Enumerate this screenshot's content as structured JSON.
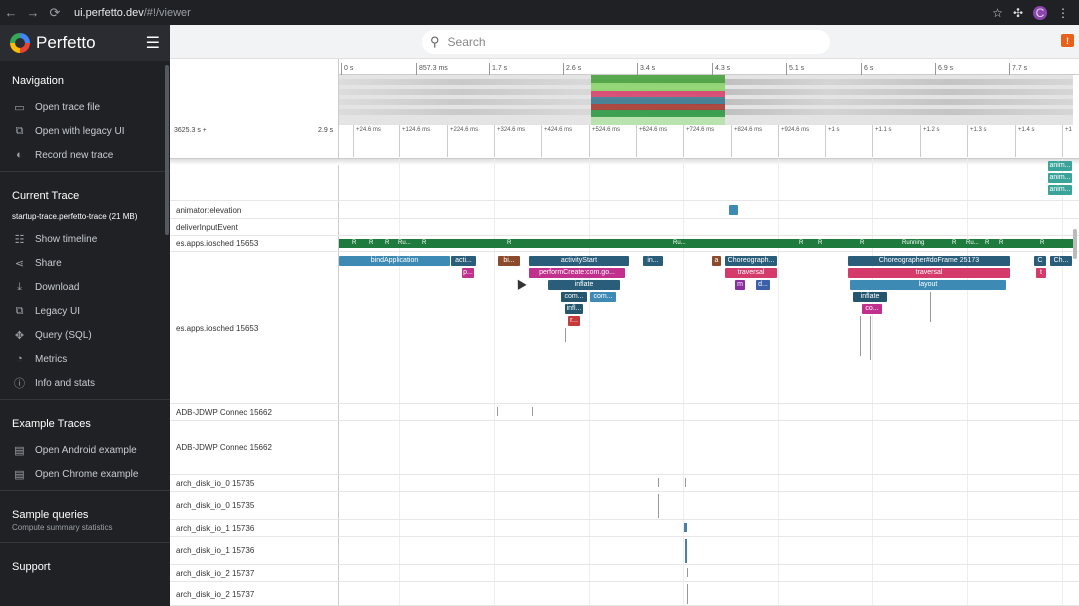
{
  "browser": {
    "url_host": "ui.perfetto.dev",
    "url_path": "/#!/viewer",
    "profile_initial": "C"
  },
  "app": {
    "name": "Perfetto"
  },
  "search": {
    "placeholder": "Search"
  },
  "sidebar": {
    "navigation_title": "Navigation",
    "navigation": [
      {
        "label": "Open trace file",
        "icon": "folder-icon"
      },
      {
        "label": "Open with legacy UI",
        "icon": "legacy-ui-icon"
      },
      {
        "label": "Record new trace",
        "icon": "record-toggle-icon"
      }
    ],
    "current_trace_title": "Current Trace",
    "trace_name": "startup-trace.perfetto-trace (21 MB)",
    "current_trace": [
      {
        "label": "Show timeline",
        "icon": "timeline-icon"
      },
      {
        "label": "Share",
        "icon": "share-icon"
      },
      {
        "label": "Download",
        "icon": "download-icon"
      },
      {
        "label": "Legacy UI",
        "icon": "legacy-ui-icon"
      },
      {
        "label": "Query (SQL)",
        "icon": "query-icon"
      },
      {
        "label": "Metrics",
        "icon": "metrics-icon"
      },
      {
        "label": "Info and stats",
        "icon": "info-icon"
      }
    ],
    "example_traces_title": "Example Traces",
    "example_traces": [
      {
        "label": "Open Android example",
        "icon": "file-icon"
      },
      {
        "label": "Open Chrome example",
        "icon": "file-icon"
      }
    ],
    "sample_queries_title": "Sample queries",
    "sample_queries_sub": "Compute summary statistics",
    "support_title": "Support"
  },
  "ruler_ticks": [
    "0 s",
    "857.3 ms",
    "1.7 s",
    "2.6 s",
    "3.4 s",
    "4.3 s",
    "5.1 s",
    "6 s",
    "6.9 s",
    "7.7 s"
  ],
  "time_row": {
    "left": "3625.3 s +",
    "right": "2.9 s",
    "ticks": [
      "+24.6 ms",
      "+124.6 ms",
      "+224.6 ms",
      "+324.6 ms",
      "+424.6 ms",
      "+524.6 ms",
      "+624.6 ms",
      "+724.6 ms",
      "+824.6 ms",
      "+924.6 ms",
      "+1 s",
      "+1.1 s",
      "+1.2 s",
      "+1.3 s",
      "+1.4 s",
      "+1"
    ]
  },
  "tracks": [
    "animator:elevation",
    "deliverInputEvent",
    "es.apps.iosched 15653",
    "es.apps.iosched 15653",
    "ADB-JDWP Connec 15662",
    "ADB-JDWP Connec 15662",
    "arch_disk_io_0 15735",
    "arch_disk_io_0 15735",
    "arch_disk_io_1 15736",
    "arch_disk_io_1 15736",
    "arch_disk_io_2 15737",
    "arch_disk_io_2 15737"
  ],
  "run_labels": [
    "R",
    "R",
    "R",
    "Ru...",
    "R",
    "R",
    "Ru...",
    "R",
    "R",
    "R",
    "Running",
    "R",
    "Ru...",
    "R",
    "R",
    "R"
  ],
  "slices": {
    "bindApplication": "bindApplication",
    "acti": "acti...",
    "p": "p...",
    "bi": "bi...",
    "activityStart": "activityStart",
    "performCreate": "performCreate:com.go...",
    "inflate1": "inflate",
    "com1": "com...",
    "com2": "com...",
    "infl": "infl...",
    "r": "r...",
    "in": "in...",
    "a": "a",
    "choreo1": "Choreograph...",
    "traversal1": "traversal",
    "m": "m",
    "d": "d...",
    "choreo2": "Choreographer#doFrame 25173",
    "traversal2": "traversal",
    "layout": "layout",
    "inflate2": "inflate",
    "co": "co...",
    "c": "C",
    "ch": "Ch...",
    "t": "t",
    "anim": "anim..."
  },
  "colors": {
    "sidebar_bg": "#1f2124",
    "running_green": "#1e7a3d",
    "slice_teal": "#3d8bb5",
    "slice_magenta": "#c0308c",
    "slice_navy": "#2a5d7a"
  }
}
